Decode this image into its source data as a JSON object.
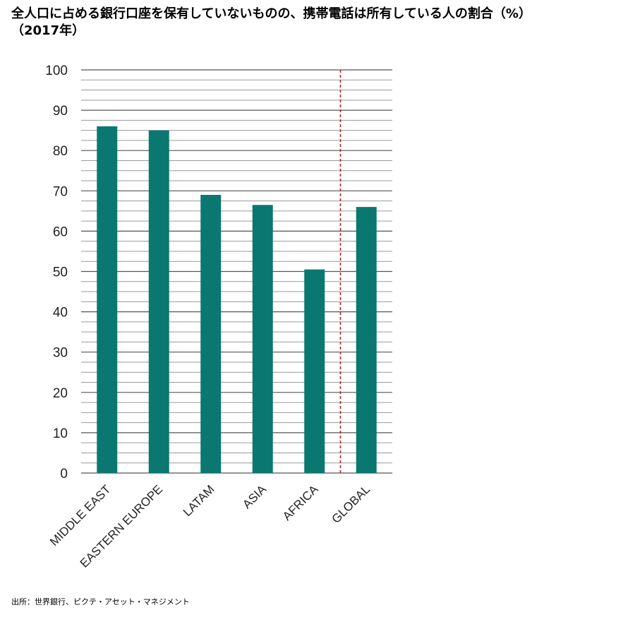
{
  "title_line1": "全人口に占める銀行口座を保有していないものの、携帯電話は所有している人の割合（%）",
  "title_line2": "（2017年）",
  "source": "出所：世界銀行、ピクテ・アセット・マネジメント",
  "chart_data": {
    "type": "bar",
    "categories": [
      "MIDDLE EAST",
      "EASTERN EUROPE",
      "LATAM",
      "ASIA",
      "AFRICA",
      "GLOBAL"
    ],
    "values": [
      86,
      85,
      69,
      66.5,
      50.5,
      66
    ],
    "ylim": [
      0,
      100
    ],
    "yticks": [
      0,
      10,
      20,
      30,
      40,
      50,
      60,
      70,
      80,
      90,
      100
    ],
    "minor_gridlines_per_major": 3,
    "divider_after_category": "AFRICA",
    "grid": true,
    "colors": {
      "bar": "#0a7871",
      "divider": "#b22222",
      "gridline": "#555555"
    }
  }
}
